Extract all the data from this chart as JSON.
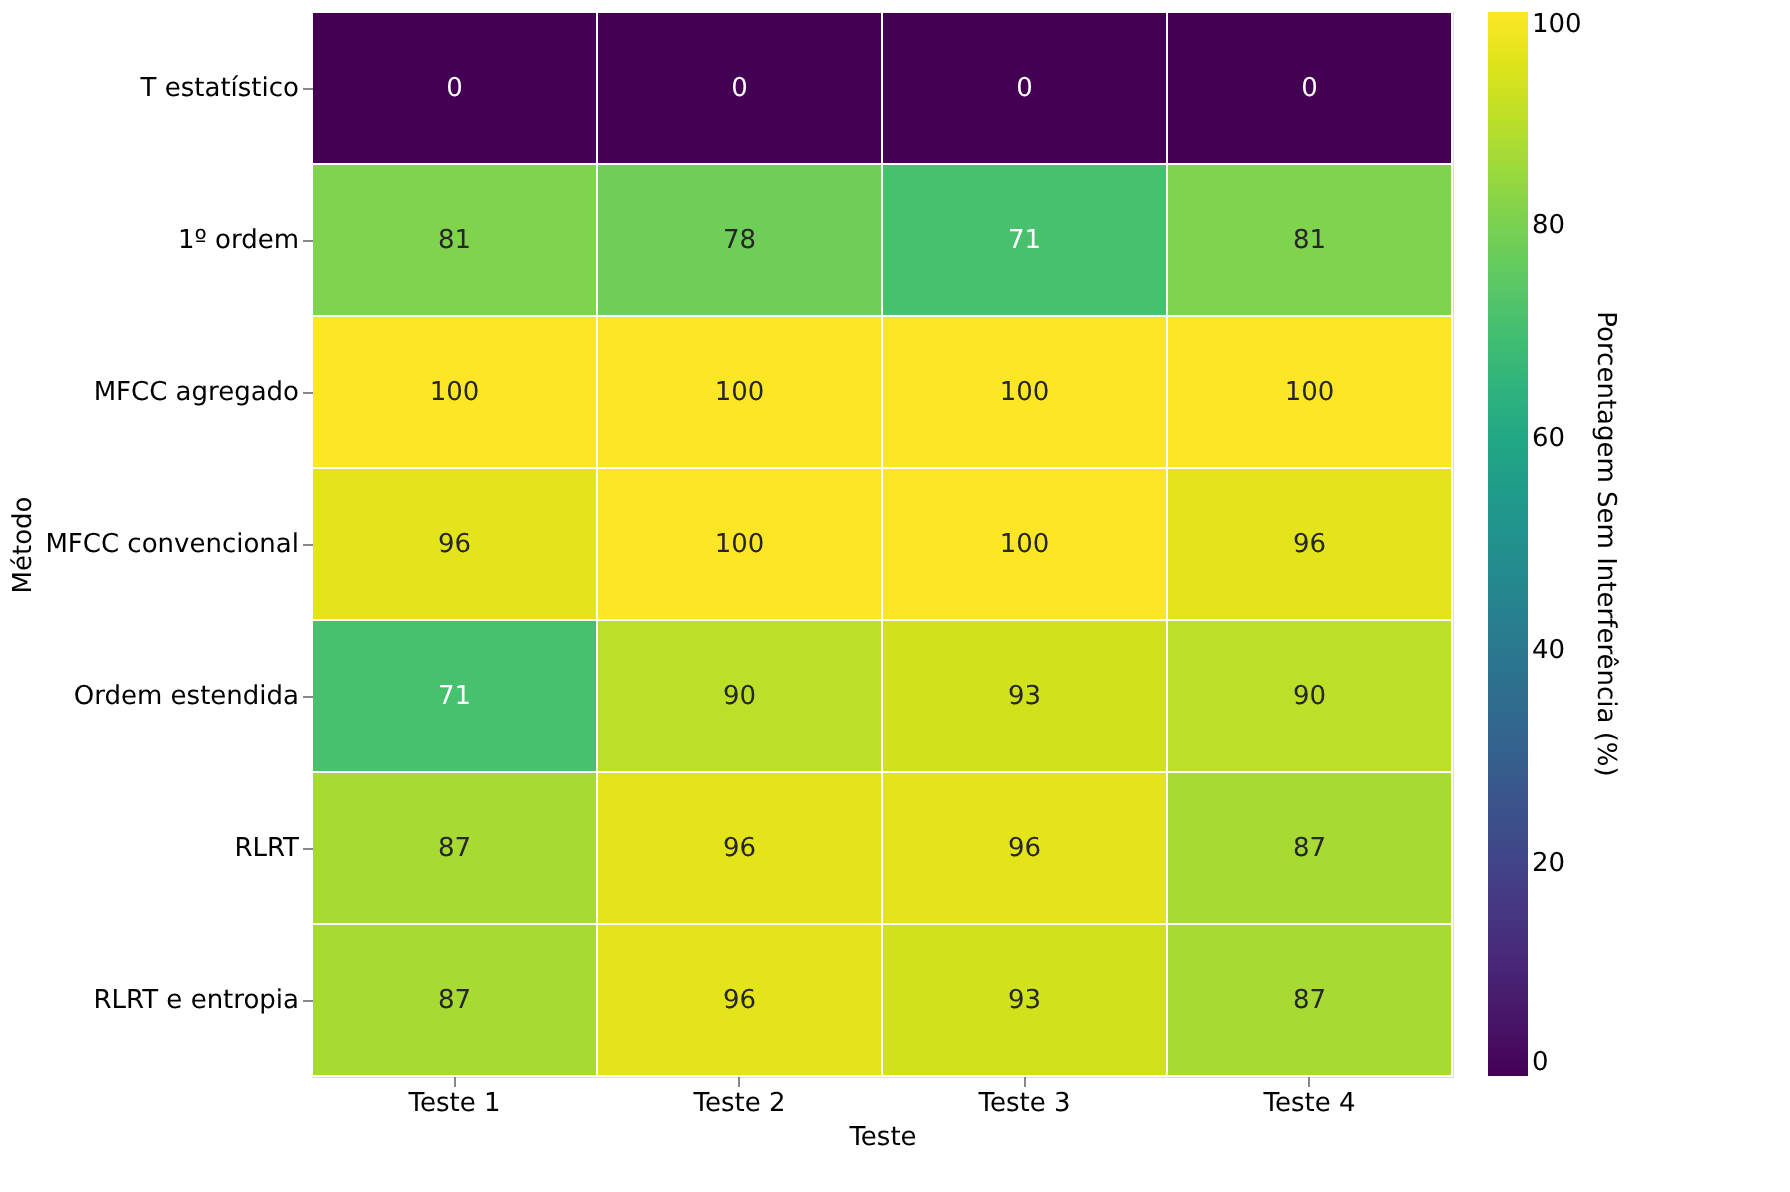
{
  "chart_data": {
    "type": "heatmap",
    "xlabel": "Teste",
    "ylabel": "Método",
    "clabel": "Porcentagem Sem Interferência (%)",
    "categories": [
      "Teste 1",
      "Teste 2",
      "Teste 3",
      "Teste 4"
    ],
    "y_categories": [
      "T estatístico",
      "1º ordem",
      "MFCC agregado",
      "MFCC convencional",
      "Ordem estendida",
      "RLRT",
      "RLRT e entropia"
    ],
    "cells": [
      [
        0,
        0,
        0,
        0
      ],
      [
        81,
        78,
        71,
        81
      ],
      [
        100,
        100,
        100,
        100
      ],
      [
        96,
        100,
        100,
        96
      ],
      [
        71,
        90,
        93,
        90
      ],
      [
        87,
        96,
        96,
        87
      ],
      [
        87,
        96,
        93,
        87
      ]
    ],
    "data_labels": true,
    "clim": [
      0,
      100
    ],
    "cticks": [
      0,
      20,
      40,
      60,
      80,
      100
    ]
  }
}
